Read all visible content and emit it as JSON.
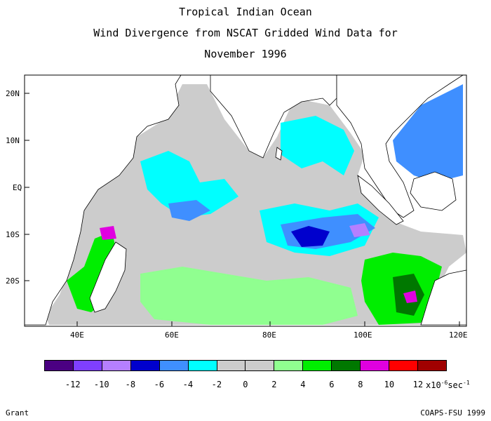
{
  "title": {
    "line1": "Tropical Indian Ocean",
    "line2": "Wind Divergence from NSCAT Gridded Wind Data for",
    "line3": "November 1996"
  },
  "axes": {
    "lat_labels": [
      "20N",
      "10N",
      "EQ",
      "10S",
      "20S"
    ],
    "lon_labels": [
      "40E",
      "60E",
      "80E",
      "100E",
      "120E"
    ]
  },
  "legend": {
    "ticks": [
      "-12",
      "-10",
      "-8",
      "-6",
      "-4",
      "-2",
      "0",
      "2",
      "4",
      "6",
      "8",
      "10",
      "12"
    ],
    "units_base": "x10",
    "units_exp": "-6",
    "units_rest": "sec",
    "units_exp2": "-1",
    "colors": [
      "#4b0082",
      "#7f3fff",
      "#b57fff",
      "#0000cd",
      "#3f8fff",
      "#00ffff",
      "#cccccc",
      "#cccccc",
      "#90ff90",
      "#00ee00",
      "#007800",
      "#e000e0",
      "#ff0000",
      "#a00000"
    ]
  },
  "footer": {
    "left": "Grant",
    "right": "COAPS-FSU 1999"
  }
}
